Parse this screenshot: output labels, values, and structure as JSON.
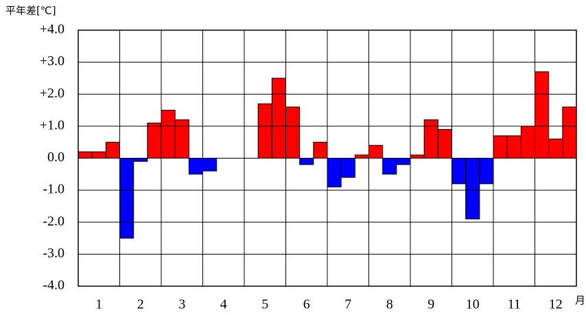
{
  "chart_data": {
    "type": "bar",
    "y_label": "平年差[℃]",
    "x_unit": "月",
    "months": [
      "1",
      "2",
      "3",
      "4",
      "5",
      "6",
      "7",
      "8",
      "9",
      "10",
      "11",
      "12"
    ],
    "values": [
      0.2,
      0.2,
      0.5,
      -2.5,
      -0.1,
      1.1,
      1.5,
      1.2,
      -0.5,
      -0.4,
      null,
      null,
      null,
      1.7,
      2.5,
      1.6,
      -0.2,
      0.5,
      -0.9,
      -0.6,
      0.1,
      0.4,
      -0.5,
      -0.2,
      0.1,
      1.2,
      0.9,
      -0.8,
      -1.9,
      -0.8,
      0.7,
      0.7,
      1.0,
      2.7,
      0.6,
      1.6
    ],
    "positive_color": "#ff0000",
    "negative_color": "#0000ff",
    "ylim": [
      -4,
      4
    ],
    "yticks": [
      {
        "value": -4,
        "label": "-4.0"
      },
      {
        "value": -3,
        "label": "-3.0"
      },
      {
        "value": -2,
        "label": "-2.0"
      },
      {
        "value": -1,
        "label": "-1.0"
      },
      {
        "value": 0,
        "label": "0.0"
      },
      {
        "value": 1,
        "label": "+1.0"
      },
      {
        "value": 2,
        "label": "+2.0"
      },
      {
        "value": 3,
        "label": "+3.0"
      },
      {
        "value": 4,
        "label": "+4.0"
      }
    ],
    "grid": true
  }
}
